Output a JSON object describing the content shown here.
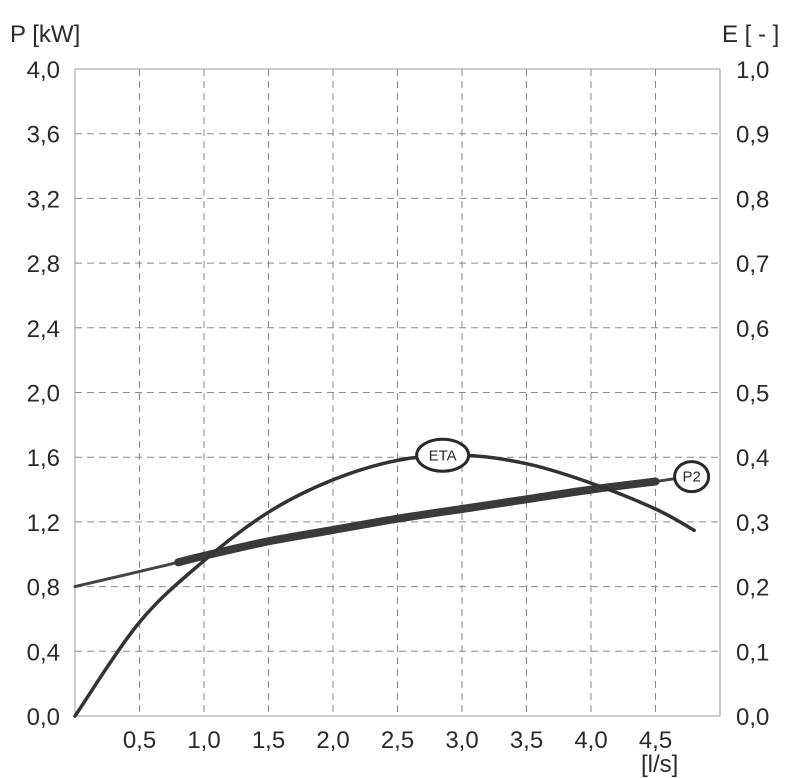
{
  "chart_data": {
    "type": "line",
    "y_left_label": "P [kW]",
    "y_right_label": "E [ - ]",
    "x_label": "[l/s]",
    "x_ticks": [
      "0,5",
      "1,0",
      "1,5",
      "2,0",
      "2,5",
      "3,0",
      "3,5",
      "4,0",
      "4,5"
    ],
    "x_tick_values": [
      0.5,
      1.0,
      1.5,
      2.0,
      2.5,
      3.0,
      3.5,
      4.0,
      4.5
    ],
    "y_left_ticks": [
      "0,0",
      "0,4",
      "0,8",
      "1,2",
      "1,6",
      "2,0",
      "2,4",
      "2,8",
      "3,2",
      "3,6",
      "4,0"
    ],
    "y_right_ticks": [
      "0,0",
      "0,1",
      "0,2",
      "0,3",
      "0,4",
      "0,5",
      "0,6",
      "0,7",
      "0,8",
      "0,9",
      "1,0"
    ],
    "xlim": [
      0,
      5.0
    ],
    "ylim_left": [
      0,
      4.0
    ],
    "ylim_right": [
      0,
      1.0
    ],
    "grid": true,
    "series": [
      {
        "name": "P2",
        "axis": "left",
        "color": "#444444",
        "x": [
          0.0,
          0.8,
          1.0,
          1.5,
          2.0,
          2.5,
          3.0,
          3.5,
          4.0,
          4.5,
          4.75
        ],
        "y": [
          0.8,
          0.95,
          0.99,
          1.08,
          1.15,
          1.22,
          1.28,
          1.34,
          1.4,
          1.45,
          1.48
        ]
      },
      {
        "name": "ETA",
        "axis": "right",
        "color": "#333333",
        "x": [
          0.0,
          0.5,
          1.0,
          1.5,
          2.0,
          2.5,
          3.0,
          3.5,
          4.0,
          4.5,
          4.8
        ],
        "y": [
          0.0,
          0.145,
          0.24,
          0.315,
          0.365,
          0.395,
          0.403,
          0.39,
          0.36,
          0.32,
          0.287
        ]
      }
    ]
  }
}
